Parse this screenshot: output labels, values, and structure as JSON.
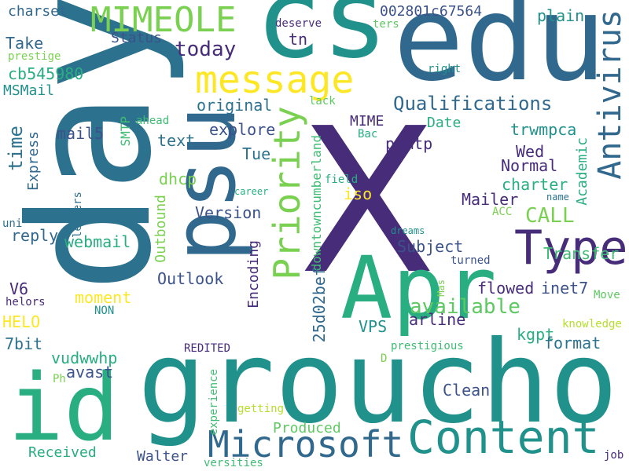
{
  "palette": {
    "purple": "#472c7a",
    "dark_blue": "#3b528b",
    "slate_blue": "#31688e",
    "steel_teal": "#2c728e",
    "teal": "#21918c",
    "sea_green": "#1fa187",
    "green": "#28ae80",
    "bright_green": "#3fbc73",
    "lime": "#5ec962",
    "yellow_green": "#7ad151",
    "light_lime": "#b5de2b",
    "yellow": "#fde725"
  },
  "words": [
    {
      "text": "day",
      "color": "#2c728e"
    },
    {
      "text": "X",
      "color": "#472c7a"
    },
    {
      "text": "groucho",
      "color": "#21918c"
    },
    {
      "text": "edu",
      "color": "#31688e"
    },
    {
      "text": "cs",
      "color": "#21918c"
    },
    {
      "text": "psu",
      "color": "#31688e"
    },
    {
      "text": "id",
      "color": "#28ae80"
    },
    {
      "text": "Apr",
      "color": "#28ae80"
    },
    {
      "text": "Content",
      "color": "#21918c"
    },
    {
      "text": "Type",
      "color": "#472c7a"
    },
    {
      "text": "message",
      "color": "#fde725"
    },
    {
      "text": "Microsoft",
      "color": "#31688e"
    },
    {
      "text": "Priority",
      "color": "#7ad151"
    },
    {
      "text": "Antivirus",
      "color": "#31688e"
    },
    {
      "text": "MIMEOLE",
      "color": "#7ad151"
    },
    {
      "text": "Qualifications",
      "color": "#31688e"
    },
    {
      "text": "available",
      "color": "#5ec962"
    },
    {
      "text": "CALL",
      "color": "#7ad151"
    },
    {
      "text": "today",
      "color": "#472c7a"
    },
    {
      "text": "charset",
      "color": "#31688e"
    },
    {
      "text": "002801c67564",
      "color": "#3b528b"
    },
    {
      "text": "plain",
      "color": "#21918c"
    },
    {
      "text": "Status",
      "color": "#3b528b"
    },
    {
      "text": "tn",
      "color": "#472c7a"
    },
    {
      "text": "deserve",
      "color": "#472c7a"
    },
    {
      "text": "ters",
      "color": "#5ec962"
    },
    {
      "text": "Take",
      "color": "#31688e"
    },
    {
      "text": "prestige",
      "color": "#7ad151"
    },
    {
      "text": "right",
      "color": "#21918c"
    },
    {
      "text": "cb545980",
      "color": "#28ae80"
    },
    {
      "text": "MSMail",
      "color": "#21918c"
    },
    {
      "text": "original",
      "color": "#2c728e"
    },
    {
      "text": "lack",
      "color": "#5ec962"
    },
    {
      "text": "time",
      "color": "#2c728e"
    },
    {
      "text": "mail5",
      "color": "#3b528b"
    },
    {
      "text": "SMTP",
      "color": "#3fbc73"
    },
    {
      "text": "ahead",
      "color": "#3fbc73"
    },
    {
      "text": "MIME",
      "color": "#472c7a"
    },
    {
      "text": "Date",
      "color": "#28ae80"
    },
    {
      "text": "trwmpca",
      "color": "#21918c"
    },
    {
      "text": "explore",
      "color": "#3b528b"
    },
    {
      "text": "text",
      "color": "#2c728e"
    },
    {
      "text": "Bac",
      "color": "#28ae80"
    },
    {
      "text": "psmtp",
      "color": "#472c7a"
    },
    {
      "text": "Express",
      "color": "#31688e"
    },
    {
      "text": "Tue",
      "color": "#2c728e"
    },
    {
      "text": "Wed",
      "color": "#472c7a"
    },
    {
      "text": "Normal",
      "color": "#472c7a"
    },
    {
      "text": "downtowncumberland",
      "color": "#3fbc73"
    },
    {
      "text": "dhcp",
      "color": "#7ad151"
    },
    {
      "text": "field",
      "color": "#28ae80"
    },
    {
      "text": "charter",
      "color": "#28ae80"
    },
    {
      "text": "Academic",
      "color": "#28ae80"
    },
    {
      "text": "iso",
      "color": "#fde725"
    },
    {
      "text": "career",
      "color": "#28ae80"
    },
    {
      "text": "Version",
      "color": "#3b528b"
    },
    {
      "text": "Mailer",
      "color": "#472c7a"
    },
    {
      "text": "name",
      "color": "#2c728e"
    },
    {
      "text": "uni",
      "color": "#2c728e"
    },
    {
      "text": "letters",
      "color": "#2c728e"
    },
    {
      "text": "Outbound",
      "color": "#7ad151"
    },
    {
      "text": "ACC",
      "color": "#7ad151"
    },
    {
      "text": "reply",
      "color": "#31688e"
    },
    {
      "text": "webmail",
      "color": "#28ae80"
    },
    {
      "text": "dreams",
      "color": "#21918c"
    },
    {
      "text": "Transfer",
      "color": "#3fbc73"
    },
    {
      "text": "Subject",
      "color": "#3b528b"
    },
    {
      "text": "Encoding",
      "color": "#472c7a"
    },
    {
      "text": "turned",
      "color": "#3b528b"
    },
    {
      "text": "Outlook",
      "color": "#3b528b"
    },
    {
      "text": "Mas",
      "color": "#7ad151"
    },
    {
      "text": "flowed",
      "color": "#472c7a"
    },
    {
      "text": "inet7",
      "color": "#3b528b"
    },
    {
      "text": "V6",
      "color": "#472c7a"
    },
    {
      "text": "moment",
      "color": "#fde725"
    },
    {
      "text": "helors",
      "color": "#472c7a"
    },
    {
      "text": "NON",
      "color": "#21918c"
    },
    {
      "text": "Move",
      "color": "#5ec962"
    },
    {
      "text": "HELO",
      "color": "#fde725"
    },
    {
      "text": "VPS",
      "color": "#21918c"
    },
    {
      "text": "arline",
      "color": "#472c7a"
    },
    {
      "text": "knowledge",
      "color": "#b5de2b"
    },
    {
      "text": "25d02bef",
      "color": "#31688e"
    },
    {
      "text": "7bit",
      "color": "#2c728e"
    },
    {
      "text": "kgpt",
      "color": "#28ae80"
    },
    {
      "text": "format",
      "color": "#2c728e"
    },
    {
      "text": "REDITED",
      "color": "#472c7a"
    },
    {
      "text": "prestigious",
      "color": "#3fbc73"
    },
    {
      "text": "vudwwhp",
      "color": "#28ae80"
    },
    {
      "text": "D",
      "color": "#7ad151"
    },
    {
      "text": "avast",
      "color": "#3b528b"
    },
    {
      "text": "Ph",
      "color": "#7ad151"
    },
    {
      "text": "Clean",
      "color": "#3b528b"
    },
    {
      "text": "experience",
      "color": "#3fbc73"
    },
    {
      "text": "getting",
      "color": "#b5de2b"
    },
    {
      "text": "Produced",
      "color": "#5ec962"
    },
    {
      "text": "Received",
      "color": "#28ae80"
    },
    {
      "text": "Walter",
      "color": "#3b528b"
    },
    {
      "text": "job",
      "color": "#472c7a"
    },
    {
      "text": "versities",
      "color": "#3fbc73"
    }
  ]
}
